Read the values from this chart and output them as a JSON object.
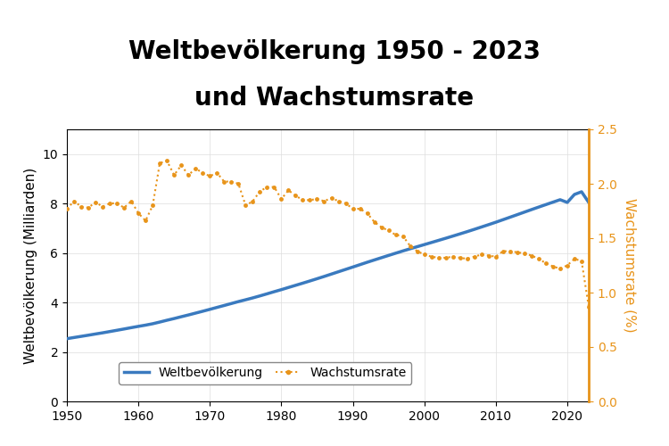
{
  "title_line1": "Weltbevölkerung 1950 - 2023",
  "title_line2": "und Wachstumsrate",
  "ylabel_left": "Weltbevölkerung (Milliarden)",
  "ylabel_right": "Wachstumsrate (%)",
  "legend_pop": "Weltbevölkerung",
  "legend_growth": "Wachstumsrate",
  "years": [
    1950,
    1951,
    1952,
    1953,
    1954,
    1955,
    1956,
    1957,
    1958,
    1959,
    1960,
    1961,
    1962,
    1963,
    1964,
    1965,
    1966,
    1967,
    1968,
    1969,
    1970,
    1971,
    1972,
    1973,
    1974,
    1975,
    1976,
    1977,
    1978,
    1979,
    1980,
    1981,
    1982,
    1983,
    1984,
    1985,
    1986,
    1987,
    1988,
    1989,
    1990,
    1991,
    1992,
    1993,
    1994,
    1995,
    1996,
    1997,
    1998,
    1999,
    2000,
    2001,
    2002,
    2003,
    2004,
    2005,
    2006,
    2007,
    2008,
    2009,
    2010,
    2011,
    2012,
    2013,
    2014,
    2015,
    2016,
    2017,
    2018,
    2019,
    2020,
    2021,
    2022,
    2023
  ],
  "population": [
    2.536,
    2.584,
    2.63,
    2.677,
    2.726,
    2.773,
    2.824,
    2.876,
    2.928,
    2.982,
    3.034,
    3.084,
    3.14,
    3.209,
    3.282,
    3.35,
    3.424,
    3.495,
    3.57,
    3.645,
    3.722,
    3.801,
    3.878,
    3.957,
    4.036,
    4.109,
    4.185,
    4.266,
    4.35,
    4.436,
    4.519,
    4.607,
    4.694,
    4.781,
    4.87,
    4.961,
    5.053,
    5.148,
    5.243,
    5.338,
    5.433,
    5.529,
    5.625,
    5.718,
    5.81,
    5.902,
    5.993,
    6.083,
    6.17,
    6.255,
    6.34,
    6.425,
    6.511,
    6.597,
    6.685,
    6.774,
    6.864,
    6.957,
    7.052,
    7.147,
    7.244,
    7.346,
    7.448,
    7.55,
    7.653,
    7.756,
    7.857,
    7.957,
    8.056,
    8.155,
    8.045,
    8.367,
    8.476,
    8.045
  ],
  "growth_rate": [
    1.77,
    1.84,
    1.79,
    1.78,
    1.83,
    1.79,
    1.82,
    1.82,
    1.78,
    1.84,
    1.73,
    1.66,
    1.8,
    2.19,
    2.21,
    2.08,
    2.17,
    2.08,
    2.14,
    2.1,
    2.07,
    2.1,
    2.02,
    2.02,
    2.0,
    1.8,
    1.84,
    1.93,
    1.97,
    1.97,
    1.86,
    1.94,
    1.89,
    1.85,
    1.85,
    1.86,
    1.84,
    1.87,
    1.84,
    1.82,
    1.77,
    1.77,
    1.73,
    1.65,
    1.6,
    1.57,
    1.53,
    1.52,
    1.43,
    1.38,
    1.35,
    1.33,
    1.32,
    1.32,
    1.33,
    1.32,
    1.31,
    1.33,
    1.35,
    1.34,
    1.33,
    1.38,
    1.38,
    1.37,
    1.36,
    1.34,
    1.31,
    1.27,
    1.24,
    1.22,
    1.25,
    1.31,
    1.29,
    0.87
  ],
  "pop_color": "#3a7abf",
  "growth_color": "#e8941a",
  "title_bg_color": "#e8e8e8",
  "plot_bg_color": "#ffffff",
  "xlim": [
    1950,
    2023
  ],
  "ylim_left": [
    0,
    11
  ],
  "ylim_right": [
    0,
    2.5
  ],
  "yticks_left": [
    0,
    2,
    4,
    6,
    8,
    10
  ],
  "yticks_right": [
    0,
    0.5,
    1.0,
    1.5,
    2.0,
    2.5
  ],
  "xticks": [
    1950,
    1960,
    1970,
    1980,
    1990,
    2000,
    2010,
    2020
  ],
  "title_fontsize": 20,
  "axis_label_fontsize": 11,
  "tick_fontsize": 10
}
